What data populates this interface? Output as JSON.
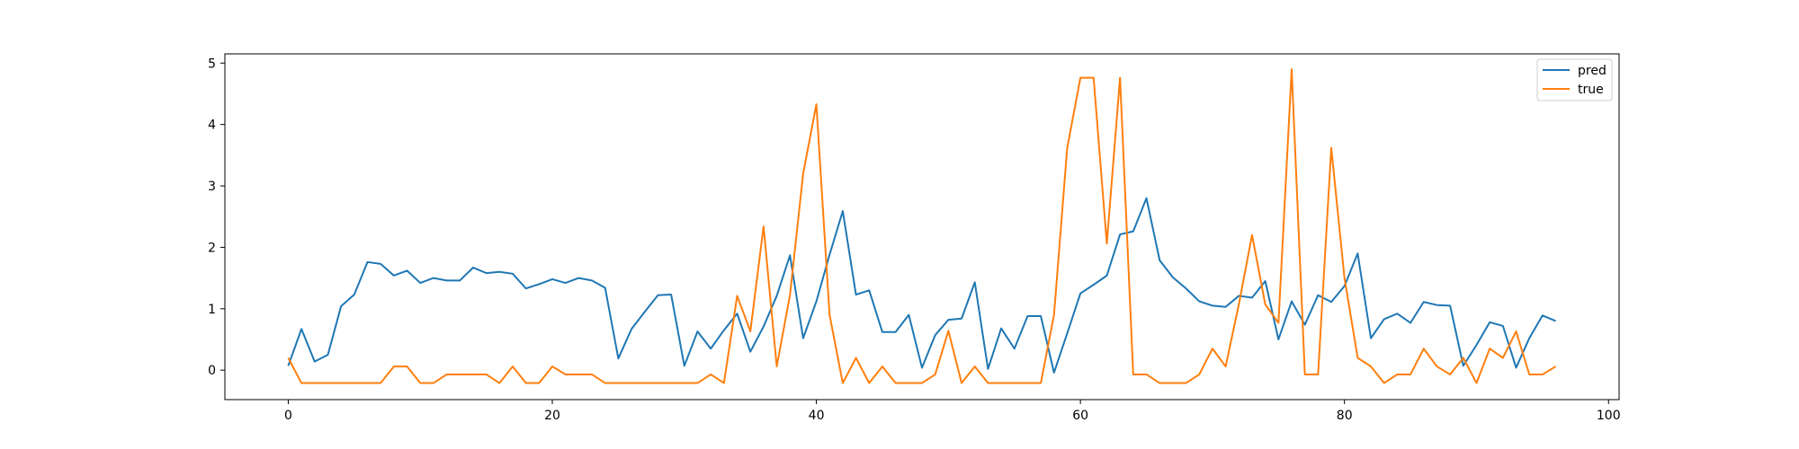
{
  "chart_data": {
    "type": "line",
    "title": "",
    "xlabel": "",
    "ylabel": "",
    "xlim": [
      -4.8,
      100.8
    ],
    "ylim": [
      -0.48,
      5.15
    ],
    "xticks": [
      0,
      20,
      40,
      60,
      80,
      100
    ],
    "yticks": [
      0,
      1,
      2,
      3,
      4,
      5
    ],
    "legend": "top-right",
    "grid": false,
    "series": [
      {
        "name": "pred",
        "color": "#1f77b4",
        "values": [
          0.07,
          0.67,
          0.14,
          0.25,
          1.04,
          1.23,
          1.76,
          1.73,
          1.54,
          1.62,
          1.42,
          1.5,
          1.46,
          1.46,
          1.67,
          1.58,
          1.6,
          1.57,
          1.33,
          1.4,
          1.48,
          1.42,
          1.5,
          1.46,
          1.34,
          0.19,
          0.67,
          0.95,
          1.22,
          1.23,
          0.07,
          0.63,
          0.35,
          0.65,
          0.92,
          0.3,
          0.71,
          1.21,
          1.87,
          0.52,
          1.12,
          1.88,
          2.59,
          1.23,
          1.3,
          0.62,
          0.62,
          0.9,
          0.04,
          0.57,
          0.82,
          0.84,
          1.43,
          0.02,
          0.68,
          0.35,
          0.88,
          0.88,
          -0.04,
          0.6,
          1.25,
          1.39,
          1.54,
          2.21,
          2.26,
          2.8,
          1.79,
          1.51,
          1.33,
          1.12,
          1.05,
          1.03,
          1.21,
          1.18,
          1.45,
          0.5,
          1.12,
          0.74,
          1.22,
          1.11,
          1.37,
          1.9,
          0.52,
          0.83,
          0.92,
          0.77,
          1.11,
          1.06,
          1.05,
          0.07,
          0.41,
          0.78,
          0.72,
          0.04,
          0.52,
          0.89,
          0.8
        ]
      },
      {
        "name": "true",
        "color": "#ff7f0e",
        "values": [
          0.2,
          -0.21,
          -0.21,
          -0.21,
          -0.21,
          -0.21,
          -0.21,
          -0.21,
          0.06,
          0.06,
          -0.21,
          -0.21,
          -0.07,
          -0.07,
          -0.07,
          -0.07,
          -0.21,
          0.06,
          -0.21,
          -0.21,
          0.06,
          -0.07,
          -0.07,
          -0.07,
          -0.21,
          -0.21,
          -0.21,
          -0.21,
          -0.21,
          -0.21,
          -0.21,
          -0.21,
          -0.07,
          -0.21,
          1.21,
          0.63,
          2.34,
          0.06,
          1.22,
          3.2,
          4.33,
          0.9,
          -0.21,
          0.2,
          -0.21,
          0.06,
          -0.21,
          -0.21,
          -0.21,
          -0.07,
          0.64,
          -0.21,
          0.06,
          -0.21,
          -0.21,
          -0.21,
          -0.21,
          -0.21,
          0.9,
          3.62,
          4.76,
          4.76,
          2.06,
          4.76,
          -0.07,
          -0.07,
          -0.21,
          -0.21,
          -0.21,
          -0.07,
          0.35,
          0.06,
          1.07,
          2.2,
          1.07,
          0.77,
          4.9,
          -0.07,
          -0.07,
          3.62,
          1.5,
          0.2,
          0.06,
          -0.21,
          -0.07,
          -0.07,
          0.35,
          0.06,
          -0.07,
          0.2,
          -0.21,
          0.35,
          0.2,
          0.63,
          -0.07,
          -0.07,
          0.06
        ]
      }
    ]
  }
}
